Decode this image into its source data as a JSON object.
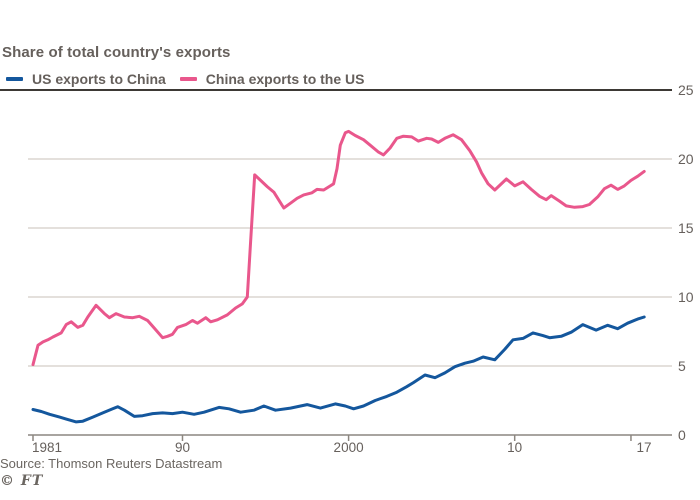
{
  "chart_data": {
    "type": "line",
    "title": "Share of total country's exports",
    "source": "Source: Thomson Reuters Datastream",
    "brand": "© FT",
    "legend_position": "top-left",
    "grid": "horizontal",
    "colors": {
      "grid": "#c9c2ba",
      "axis": "#8c8680",
      "top_rule": "#3d3935",
      "text": "#66605c"
    },
    "y_axis": {
      "side": "right",
      "range": [
        0,
        25
      ],
      "ticks": [
        {
          "value": 0,
          "label": "0"
        },
        {
          "value": 5,
          "label": "5"
        },
        {
          "value": 10,
          "label": "10"
        },
        {
          "value": 15,
          "label": "15"
        },
        {
          "value": 20,
          "label": "20"
        },
        {
          "value": 25,
          "label": "25"
        }
      ]
    },
    "x_axis": {
      "range": [
        1980.7,
        2019.5
      ],
      "ticks": [
        {
          "year": 1981,
          "label": "1981",
          "label_offset": 14
        },
        {
          "year": 1990,
          "label": "90",
          "label_offset": 0
        },
        {
          "year": 2000,
          "label": "2000",
          "label_offset": 0
        },
        {
          "year": 2010,
          "label": "10",
          "label_offset": 0
        },
        {
          "year": 2017,
          "label": "17",
          "label_offset": 13
        }
      ]
    },
    "series": [
      {
        "name": "US exports to China",
        "color": "#14579d",
        "points": [
          [
            1981.0,
            1.85
          ],
          [
            1981.5,
            1.7
          ],
          [
            1982.0,
            1.5
          ],
          [
            1982.6,
            1.3
          ],
          [
            1983.0,
            1.15
          ],
          [
            1983.6,
            0.95
          ],
          [
            1984.0,
            1.0
          ],
          [
            1984.6,
            1.3
          ],
          [
            1985.2,
            1.6
          ],
          [
            1985.8,
            1.9
          ],
          [
            1986.1,
            2.05
          ],
          [
            1986.5,
            1.8
          ],
          [
            1987.1,
            1.35
          ],
          [
            1987.6,
            1.4
          ],
          [
            1988.2,
            1.55
          ],
          [
            1988.8,
            1.6
          ],
          [
            1989.4,
            1.55
          ],
          [
            1990.0,
            1.65
          ],
          [
            1990.7,
            1.5
          ],
          [
            1991.3,
            1.65
          ],
          [
            1992.2,
            2.0
          ],
          [
            1992.8,
            1.9
          ],
          [
            1993.5,
            1.65
          ],
          [
            1994.3,
            1.8
          ],
          [
            1994.9,
            2.1
          ],
          [
            1995.6,
            1.8
          ],
          [
            1996.5,
            1.95
          ],
          [
            1997.5,
            2.2
          ],
          [
            1998.3,
            1.95
          ],
          [
            1999.2,
            2.25
          ],
          [
            1999.8,
            2.1
          ],
          [
            2000.3,
            1.9
          ],
          [
            2000.9,
            2.1
          ],
          [
            2001.6,
            2.5
          ],
          [
            2002.3,
            2.8
          ],
          [
            2002.9,
            3.1
          ],
          [
            2003.5,
            3.5
          ],
          [
            2003.9,
            3.8
          ],
          [
            2004.6,
            4.35
          ],
          [
            2005.2,
            4.15
          ],
          [
            2005.8,
            4.5
          ],
          [
            2006.4,
            4.95
          ],
          [
            2007.0,
            5.2
          ],
          [
            2007.5,
            5.35
          ],
          [
            2008.1,
            5.65
          ],
          [
            2008.8,
            5.45
          ],
          [
            2009.4,
            6.2
          ],
          [
            2009.9,
            6.9
          ],
          [
            2010.5,
            7.0
          ],
          [
            2011.1,
            7.4
          ],
          [
            2011.7,
            7.2
          ],
          [
            2012.1,
            7.05
          ],
          [
            2012.8,
            7.15
          ],
          [
            2013.4,
            7.45
          ],
          [
            2014.1,
            8.0
          ],
          [
            2014.9,
            7.6
          ],
          [
            2015.6,
            7.95
          ],
          [
            2016.2,
            7.7
          ],
          [
            2016.8,
            8.1
          ],
          [
            2017.4,
            8.4
          ],
          [
            2017.8,
            8.55
          ]
        ]
      },
      {
        "name": "China exports to the US",
        "color": "#e9578c",
        "points": [
          [
            1981.0,
            5.1
          ],
          [
            1981.3,
            6.5
          ],
          [
            1981.6,
            6.75
          ],
          [
            1981.9,
            6.9
          ],
          [
            1982.2,
            7.1
          ],
          [
            1982.7,
            7.4
          ],
          [
            1983.0,
            8.0
          ],
          [
            1983.3,
            8.2
          ],
          [
            1983.7,
            7.8
          ],
          [
            1984.0,
            7.95
          ],
          [
            1984.3,
            8.55
          ],
          [
            1984.8,
            9.4
          ],
          [
            1985.3,
            8.8
          ],
          [
            1985.6,
            8.5
          ],
          [
            1986.0,
            8.8
          ],
          [
            1986.5,
            8.55
          ],
          [
            1987.0,
            8.5
          ],
          [
            1987.4,
            8.6
          ],
          [
            1987.9,
            8.3
          ],
          [
            1988.3,
            7.75
          ],
          [
            1988.8,
            7.05
          ],
          [
            1989.1,
            7.15
          ],
          [
            1989.4,
            7.3
          ],
          [
            1989.7,
            7.8
          ],
          [
            1990.2,
            8.0
          ],
          [
            1990.6,
            8.3
          ],
          [
            1990.9,
            8.1
          ],
          [
            1991.4,
            8.5
          ],
          [
            1991.7,
            8.2
          ],
          [
            1992.1,
            8.35
          ],
          [
            1992.7,
            8.7
          ],
          [
            1993.2,
            9.2
          ],
          [
            1993.6,
            9.5
          ],
          [
            1993.9,
            10.0
          ],
          [
            1994.1,
            14.0
          ],
          [
            1994.35,
            18.85
          ],
          [
            1994.7,
            18.45
          ],
          [
            1995.1,
            18.0
          ],
          [
            1995.5,
            17.6
          ],
          [
            1996.1,
            16.45
          ],
          [
            1996.5,
            16.8
          ],
          [
            1996.9,
            17.15
          ],
          [
            1997.3,
            17.4
          ],
          [
            1997.8,
            17.55
          ],
          [
            1998.1,
            17.8
          ],
          [
            1998.5,
            17.75
          ],
          [
            1998.9,
            18.05
          ],
          [
            1999.1,
            18.2
          ],
          [
            1999.3,
            19.3
          ],
          [
            1999.5,
            21.0
          ],
          [
            1999.8,
            21.9
          ],
          [
            2000.0,
            22.0
          ],
          [
            2000.4,
            21.7
          ],
          [
            2000.9,
            21.4
          ],
          [
            2001.3,
            21.0
          ],
          [
            2001.8,
            20.5
          ],
          [
            2002.1,
            20.3
          ],
          [
            2002.5,
            20.8
          ],
          [
            2002.9,
            21.5
          ],
          [
            2003.3,
            21.65
          ],
          [
            2003.8,
            21.6
          ],
          [
            2004.2,
            21.3
          ],
          [
            2004.7,
            21.5
          ],
          [
            2005.0,
            21.45
          ],
          [
            2005.4,
            21.2
          ],
          [
            2005.8,
            21.5
          ],
          [
            2006.3,
            21.75
          ],
          [
            2006.8,
            21.4
          ],
          [
            2007.3,
            20.6
          ],
          [
            2007.7,
            19.8
          ],
          [
            2008.0,
            19.0
          ],
          [
            2008.4,
            18.2
          ],
          [
            2008.8,
            17.75
          ],
          [
            2009.5,
            18.55
          ],
          [
            2010.0,
            18.05
          ],
          [
            2010.5,
            18.35
          ],
          [
            2011.0,
            17.8
          ],
          [
            2011.5,
            17.3
          ],
          [
            2011.9,
            17.05
          ],
          [
            2012.2,
            17.35
          ],
          [
            2012.7,
            16.95
          ],
          [
            2013.1,
            16.6
          ],
          [
            2013.6,
            16.5
          ],
          [
            2014.1,
            16.55
          ],
          [
            2014.5,
            16.7
          ],
          [
            2015.0,
            17.25
          ],
          [
            2015.4,
            17.85
          ],
          [
            2015.8,
            18.1
          ],
          [
            2016.2,
            17.8
          ],
          [
            2016.6,
            18.05
          ],
          [
            2017.0,
            18.45
          ],
          [
            2017.4,
            18.75
          ],
          [
            2017.8,
            19.1
          ]
        ]
      }
    ]
  }
}
